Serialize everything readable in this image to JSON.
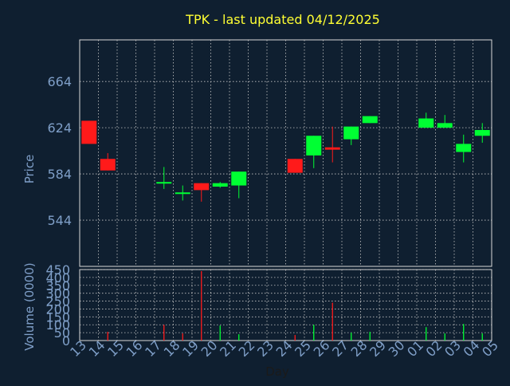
{
  "title": "TPK - last updated 04/12/2025",
  "colors": {
    "background": "#0f1f30",
    "title": "#ffff33",
    "axis_text": "#7f9fc8",
    "xlabel_text": "#1a1a1a",
    "grid": "#c8c8c8",
    "frame": "#d8d8d8",
    "up": "#00ff33",
    "down": "#ff1a1a"
  },
  "chart_data": [
    {
      "type": "candlestick",
      "ylabel": "Price",
      "yticks": [
        544,
        584,
        624,
        664
      ],
      "ylim": [
        504,
        700
      ],
      "grid": true,
      "x_ticks": [
        "13",
        "14",
        "15",
        "16",
        "17",
        "18",
        "19",
        "20",
        "21",
        "22",
        "23",
        "24",
        "25",
        "26",
        "27",
        "28",
        "29",
        "30",
        "01",
        "02",
        "03",
        "04",
        "05"
      ],
      "candles": [
        {
          "day": "13",
          "open": 630,
          "close": 610,
          "high": 630,
          "low": 610
        },
        {
          "day": "14",
          "open": 597,
          "close": 587,
          "high": 602,
          "low": 587
        },
        {
          "day": "17",
          "open": 577,
          "close": 577,
          "high": 590,
          "low": 571
        },
        {
          "day": "18",
          "open": 568,
          "close": 568,
          "high": 574,
          "low": 561
        },
        {
          "day": "19",
          "open": 576,
          "close": 570,
          "high": 576,
          "low": 560
        },
        {
          "day": "20",
          "open": 573,
          "close": 576,
          "high": 577,
          "low": 572
        },
        {
          "day": "21",
          "open": 574,
          "close": 586,
          "high": 586,
          "low": 563
        },
        {
          "day": "24",
          "open": 597,
          "close": 585,
          "high": 597,
          "low": 585
        },
        {
          "day": "25",
          "open": 600,
          "close": 617,
          "high": 617,
          "low": 589
        },
        {
          "day": "26",
          "open": 607,
          "close": 605,
          "high": 625,
          "low": 594
        },
        {
          "day": "27",
          "open": 614,
          "close": 625,
          "high": 625,
          "low": 609
        },
        {
          "day": "28",
          "open": 628,
          "close": 634,
          "high": 634,
          "low": 628
        },
        {
          "day": "01",
          "open": 624,
          "close": 632,
          "high": 637,
          "low": 624
        },
        {
          "day": "02",
          "open": 624,
          "close": 628,
          "high": 635,
          "low": 624
        },
        {
          "day": "03",
          "open": 603,
          "close": 610,
          "high": 618,
          "low": 594
        },
        {
          "day": "04",
          "open": 617,
          "close": 622,
          "high": 628,
          "low": 611
        }
      ]
    },
    {
      "type": "bar",
      "ylabel": "Volume (0000)",
      "xlabel": "Day",
      "yticks": [
        0,
        50,
        100,
        150,
        200,
        250,
        300,
        350,
        400,
        450
      ],
      "ylim": [
        0,
        450
      ],
      "grid": true,
      "x_ticks": [
        "13",
        "14",
        "15",
        "16",
        "17",
        "18",
        "19",
        "20",
        "21",
        "22",
        "23",
        "24",
        "25",
        "26",
        "27",
        "28",
        "29",
        "30",
        "01",
        "02",
        "03",
        "04",
        "05"
      ],
      "volume": [
        {
          "day": "13",
          "value": 0,
          "direction": "down"
        },
        {
          "day": "14",
          "value": 55,
          "direction": "down"
        },
        {
          "day": "17",
          "value": 100,
          "direction": "down"
        },
        {
          "day": "18",
          "value": 45,
          "direction": "down"
        },
        {
          "day": "19",
          "value": 440,
          "direction": "down"
        },
        {
          "day": "20",
          "value": 95,
          "direction": "up"
        },
        {
          "day": "21",
          "value": 40,
          "direction": "up"
        },
        {
          "day": "24",
          "value": 35,
          "direction": "down"
        },
        {
          "day": "25",
          "value": 100,
          "direction": "up"
        },
        {
          "day": "26",
          "value": 240,
          "direction": "down"
        },
        {
          "day": "27",
          "value": 50,
          "direction": "up"
        },
        {
          "day": "28",
          "value": 55,
          "direction": "up"
        },
        {
          "day": "01",
          "value": 85,
          "direction": "up"
        },
        {
          "day": "02",
          "value": 45,
          "direction": "up"
        },
        {
          "day": "03",
          "value": 105,
          "direction": "up"
        },
        {
          "day": "04",
          "value": 45,
          "direction": "up"
        }
      ]
    }
  ]
}
